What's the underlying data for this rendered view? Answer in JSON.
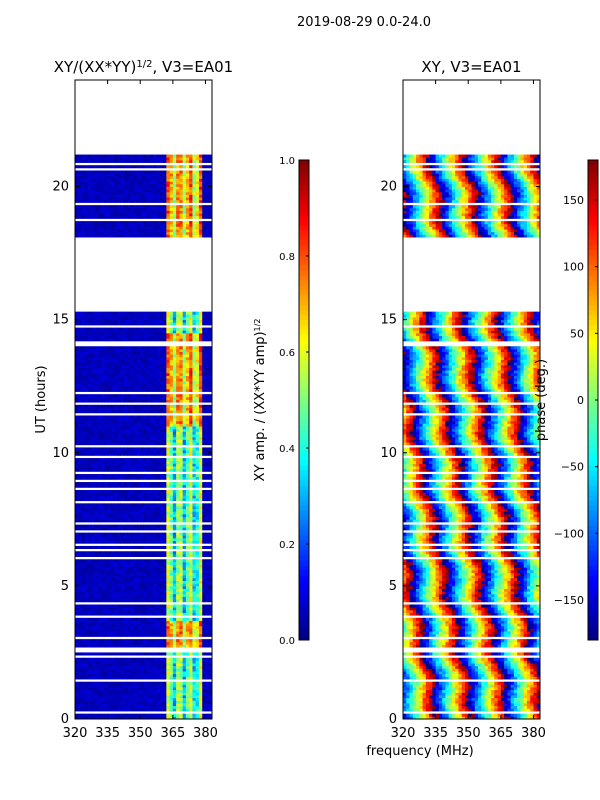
{
  "suptitle": "2019-08-29 0.0-24.0",
  "colors": {
    "background": "#ffffff",
    "nan_gap": "#ffffff",
    "colormap": [
      "#00007f",
      "#0000ff",
      "#007fff",
      "#00ffff",
      "#7fff7f",
      "#ffff00",
      "#ff7f00",
      "#ff0000",
      "#7f0000"
    ]
  },
  "chart_data": [
    {
      "type": "heatmap",
      "title": "XY/(XX*YY)",
      "title_sup": "1/2",
      "title_suffix": ", V3=EA01",
      "xlabel": "",
      "ylabel": "UT (hours)",
      "xlim": [
        320,
        383
      ],
      "ylim": [
        0,
        24
      ],
      "xticks": [
        320,
        335,
        350,
        365,
        380
      ],
      "yticks": [
        0,
        5,
        10,
        15,
        20
      ],
      "value_kind": "amplitude",
      "colorbar": {
        "label": "XY amp. / (XX*YY amp)",
        "label_sup": "1/2",
        "range": [
          0.0,
          1.0
        ],
        "ticks": [
          0.0,
          0.2,
          0.4,
          0.6,
          0.8,
          1.0
        ],
        "tick_labels": [
          "0.0",
          "0.2",
          "0.4",
          "0.6",
          "0.8",
          "1.0"
        ]
      },
      "bright_band_mhz": [
        362,
        379
      ],
      "typical_values": {
        "background": 0.03,
        "band": 0.45,
        "band_peak": 0.7
      }
    },
    {
      "type": "heatmap",
      "title": "XY, V3=EA01",
      "title_sup": "",
      "title_suffix": "",
      "xlabel": "frequency (MHz)",
      "ylabel": "",
      "xlim": [
        320,
        383
      ],
      "ylim": [
        0,
        24
      ],
      "xticks": [
        320,
        335,
        350,
        365,
        380
      ],
      "yticks": [
        0,
        5,
        10,
        15,
        20
      ],
      "value_kind": "phase",
      "colorbar": {
        "label": "phase (deg.)",
        "label_sup": "",
        "range": [
          -180,
          180
        ],
        "ticks": [
          -150,
          -100,
          -50,
          0,
          50,
          100,
          150
        ],
        "tick_labels": [
          "−150",
          "−100",
          "−50",
          "0",
          "50",
          "100",
          "150"
        ]
      },
      "phase_slope_deg_per_mhz": 22
    }
  ],
  "flagged_time_ranges_hours": [
    [
      22.95,
      24.0
    ],
    [
      21.25,
      22.95
    ],
    [
      18.0,
      18.1
    ],
    [
      15.35,
      18.0
    ],
    [
      14.0,
      14.25
    ],
    [
      10.2,
      10.35
    ],
    [
      9.85,
      9.95
    ],
    [
      6.55,
      6.65
    ],
    [
      2.5,
      2.75
    ],
    [
      0.2,
      0.3
    ]
  ],
  "flagged_scan_lines_hours": [
    23.7,
    23.35,
    20.85,
    20.65,
    19.8,
    19.35,
    18.75,
    18.5,
    15.0,
    14.75,
    14.5,
    13.7,
    13.3,
    12.8,
    12.25,
    11.85,
    11.45,
    11.1,
    10.6,
    9.6,
    9.25,
    8.95,
    8.65,
    8.4,
    8.15,
    7.9,
    7.6,
    7.35,
    7.05,
    6.8,
    6.35,
    6.05,
    5.7,
    5.4,
    5.1,
    4.9,
    4.6,
    4.35,
    4.1,
    3.85,
    3.6,
    3.3,
    3.05,
    2.9,
    2.35,
    2.0,
    1.7,
    1.45,
    1.2,
    0.9,
    0.6
  ]
}
